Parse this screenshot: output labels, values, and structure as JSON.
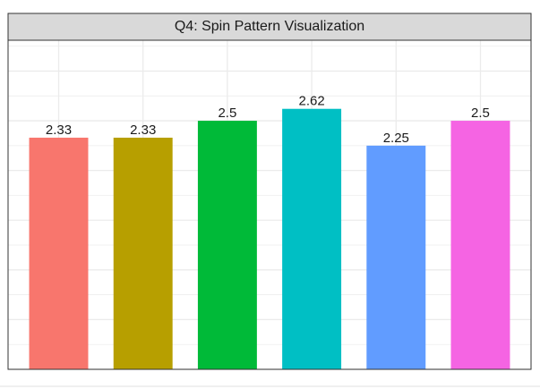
{
  "chart_data": {
    "type": "bar",
    "title": "Q4: Spin Pattern Visualization",
    "values": [
      2.33,
      2.33,
      2.5,
      2.62,
      2.25,
      2.5
    ],
    "colors": [
      "#f8766d",
      "#b79f00",
      "#00ba38",
      "#00bfc4",
      "#619cff",
      "#f564e3"
    ],
    "ylim": [
      0,
      3.31
    ],
    "yticks": [
      0,
      0.25,
      0.5,
      0.75,
      1,
      1.25,
      1.5,
      1.75,
      2,
      2.25,
      2.5,
      2.75,
      3,
      3.25
    ],
    "grid": true
  }
}
